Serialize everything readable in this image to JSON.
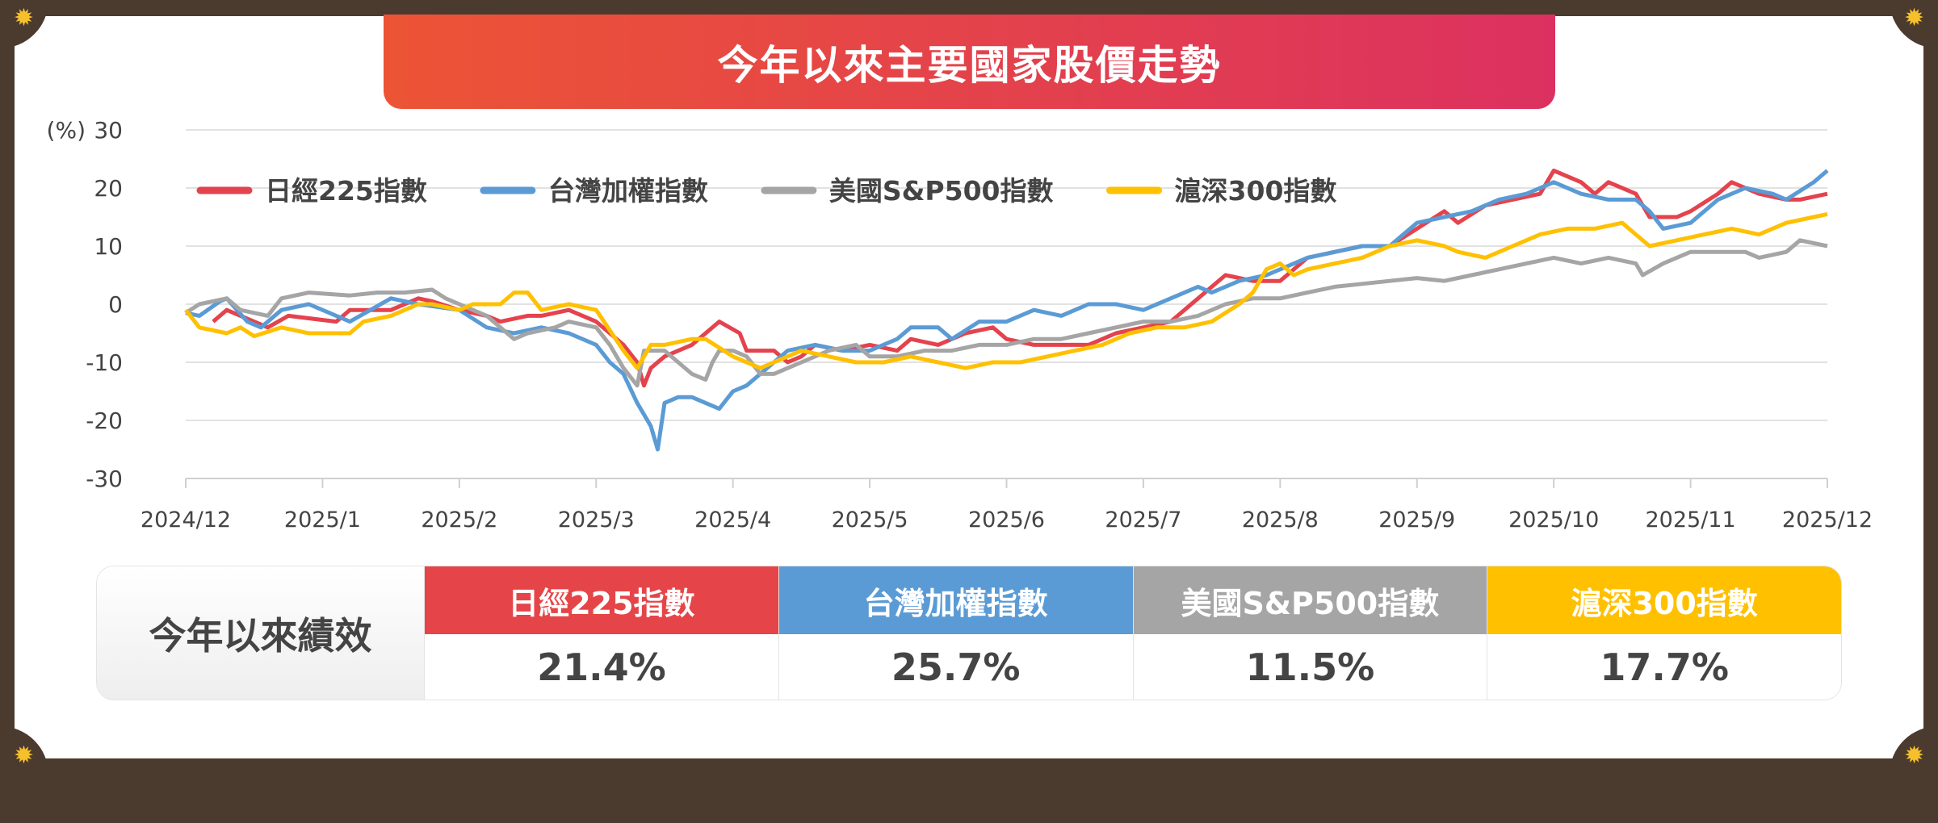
{
  "title": "今年以來主要國家股價走勢",
  "chart_data": {
    "type": "line",
    "title": "今年以來主要國家股價走勢",
    "ylabel": "(%)",
    "ylim": [
      -30,
      30
    ],
    "yticks": [
      "30",
      "20",
      "10",
      "0",
      "-10",
      "-20",
      "-30"
    ],
    "ytick_values": [
      30,
      20,
      10,
      0,
      -10,
      -20,
      -30
    ],
    "xlim": [
      0,
      12
    ],
    "xticks": [
      "2024/12",
      "2025/1",
      "2025/2",
      "2025/3",
      "2025/4",
      "2025/5",
      "2025/6",
      "2025/7",
      "2025/8",
      "2025/9",
      "2025/10",
      "2025/11",
      "2025/12"
    ],
    "grid": true,
    "legend_position": "top",
    "series": [
      {
        "name": "日經225指數",
        "color": "#e4434d",
        "points": [
          [
            0.2,
            -3
          ],
          [
            0.3,
            -1
          ],
          [
            0.5,
            -3
          ],
          [
            0.6,
            -4
          ],
          [
            0.75,
            -2
          ],
          [
            1.1,
            -3
          ],
          [
            1.2,
            -1
          ],
          [
            1.5,
            -1
          ],
          [
            1.7,
            1
          ],
          [
            1.8,
            0.5
          ],
          [
            2,
            -1
          ],
          [
            2.2,
            -2
          ],
          [
            2.3,
            -3
          ],
          [
            2.5,
            -2
          ],
          [
            2.6,
            -2
          ],
          [
            2.8,
            -1
          ],
          [
            3,
            -3
          ],
          [
            3.1,
            -5
          ],
          [
            3.2,
            -7
          ],
          [
            3.3,
            -10
          ],
          [
            3.35,
            -14
          ],
          [
            3.4,
            -11
          ],
          [
            3.5,
            -9
          ],
          [
            3.7,
            -7
          ],
          [
            3.8,
            -5
          ],
          [
            3.9,
            -3
          ],
          [
            4.05,
            -5
          ],
          [
            4.1,
            -8
          ],
          [
            4.3,
            -8
          ],
          [
            4.4,
            -10
          ],
          [
            4.5,
            -9
          ],
          [
            4.6,
            -7
          ],
          [
            4.8,
            -8
          ],
          [
            5,
            -7
          ],
          [
            5.2,
            -8
          ],
          [
            5.3,
            -6
          ],
          [
            5.5,
            -7
          ],
          [
            5.7,
            -5
          ],
          [
            5.9,
            -4
          ],
          [
            6,
            -6
          ],
          [
            6.2,
            -7
          ],
          [
            6.4,
            -7
          ],
          [
            6.6,
            -7
          ],
          [
            6.8,
            -5
          ],
          [
            7,
            -4
          ],
          [
            7.2,
            -3
          ],
          [
            7.4,
            1
          ],
          [
            7.6,
            5
          ],
          [
            7.8,
            4
          ],
          [
            8,
            4
          ],
          [
            8.2,
            8
          ],
          [
            8.4,
            9
          ],
          [
            8.6,
            10
          ],
          [
            8.8,
            10
          ],
          [
            9,
            13
          ],
          [
            9.2,
            16
          ],
          [
            9.3,
            14
          ],
          [
            9.5,
            17
          ],
          [
            9.7,
            18
          ],
          [
            9.9,
            19
          ],
          [
            10,
            23
          ],
          [
            10.2,
            21
          ],
          [
            10.3,
            19
          ],
          [
            10.4,
            21
          ],
          [
            10.6,
            19
          ],
          [
            10.7,
            15
          ],
          [
            10.9,
            15
          ],
          [
            11,
            16
          ],
          [
            11.2,
            19
          ],
          [
            11.3,
            21
          ],
          [
            11.5,
            19
          ],
          [
            11.7,
            18
          ],
          [
            11.8,
            18
          ],
          [
            12,
            19
          ]
        ]
      },
      {
        "name": "台灣加權指數",
        "color": "#5b9bd5",
        "points": [
          [
            0,
            -1.5
          ],
          [
            0.1,
            -2
          ],
          [
            0.25,
            0.5
          ],
          [
            0.3,
            1
          ],
          [
            0.45,
            -3
          ],
          [
            0.55,
            -4
          ],
          [
            0.7,
            -1
          ],
          [
            0.9,
            0
          ],
          [
            1.2,
            -3
          ],
          [
            1.5,
            1
          ],
          [
            1.7,
            0
          ],
          [
            2,
            -1
          ],
          [
            2.2,
            -4
          ],
          [
            2.4,
            -5
          ],
          [
            2.6,
            -4
          ],
          [
            2.8,
            -5
          ],
          [
            3,
            -7
          ],
          [
            3.1,
            -10
          ],
          [
            3.2,
            -12
          ],
          [
            3.3,
            -17
          ],
          [
            3.4,
            -21
          ],
          [
            3.45,
            -25
          ],
          [
            3.5,
            -17
          ],
          [
            3.6,
            -16
          ],
          [
            3.7,
            -16
          ],
          [
            3.8,
            -17
          ],
          [
            3.9,
            -18
          ],
          [
            4,
            -15
          ],
          [
            4.1,
            -14
          ],
          [
            4.2,
            -12
          ],
          [
            4.4,
            -8
          ],
          [
            4.6,
            -7
          ],
          [
            4.8,
            -8
          ],
          [
            5,
            -8
          ],
          [
            5.2,
            -6
          ],
          [
            5.3,
            -4
          ],
          [
            5.5,
            -4
          ],
          [
            5.6,
            -6
          ],
          [
            5.8,
            -3
          ],
          [
            6,
            -3
          ],
          [
            6.2,
            -1
          ],
          [
            6.4,
            -2
          ],
          [
            6.6,
            0
          ],
          [
            6.8,
            0
          ],
          [
            7,
            -1
          ],
          [
            7.2,
            1
          ],
          [
            7.4,
            3
          ],
          [
            7.5,
            2
          ],
          [
            7.7,
            4
          ],
          [
            7.9,
            5
          ],
          [
            8.2,
            8
          ],
          [
            8.4,
            9
          ],
          [
            8.6,
            10
          ],
          [
            8.8,
            10
          ],
          [
            9,
            14
          ],
          [
            9.2,
            15
          ],
          [
            9.4,
            16
          ],
          [
            9.6,
            18
          ],
          [
            9.8,
            19
          ],
          [
            10,
            21
          ],
          [
            10.2,
            19
          ],
          [
            10.4,
            18
          ],
          [
            10.6,
            18
          ],
          [
            10.7,
            16
          ],
          [
            10.8,
            13
          ],
          [
            11,
            14
          ],
          [
            11.2,
            18
          ],
          [
            11.4,
            20
          ],
          [
            11.6,
            19
          ],
          [
            11.7,
            18
          ],
          [
            11.9,
            21
          ],
          [
            12,
            23
          ]
        ]
      },
      {
        "name": "美國S&P500指數",
        "color": "#a5a5a5",
        "points": [
          [
            0,
            -1.5
          ],
          [
            0.1,
            0
          ],
          [
            0.3,
            1
          ],
          [
            0.4,
            -1
          ],
          [
            0.6,
            -2
          ],
          [
            0.7,
            1
          ],
          [
            0.9,
            2
          ],
          [
            1.2,
            1.5
          ],
          [
            1.4,
            2
          ],
          [
            1.6,
            2
          ],
          [
            1.8,
            2.5
          ],
          [
            1.9,
            1
          ],
          [
            2,
            0
          ],
          [
            2.2,
            -2
          ],
          [
            2.3,
            -4
          ],
          [
            2.4,
            -6
          ],
          [
            2.5,
            -5
          ],
          [
            2.7,
            -4
          ],
          [
            2.8,
            -3
          ],
          [
            3,
            -4
          ],
          [
            3.1,
            -7
          ],
          [
            3.2,
            -11
          ],
          [
            3.3,
            -14
          ],
          [
            3.35,
            -8
          ],
          [
            3.5,
            -8
          ],
          [
            3.6,
            -10
          ],
          [
            3.7,
            -12
          ],
          [
            3.8,
            -13
          ],
          [
            3.85,
            -10
          ],
          [
            3.9,
            -8
          ],
          [
            4,
            -8
          ],
          [
            4.1,
            -9
          ],
          [
            4.2,
            -12
          ],
          [
            4.3,
            -12
          ],
          [
            4.4,
            -11
          ],
          [
            4.5,
            -10
          ],
          [
            4.7,
            -8
          ],
          [
            4.9,
            -7
          ],
          [
            5,
            -9
          ],
          [
            5.2,
            -9
          ],
          [
            5.4,
            -8
          ],
          [
            5.6,
            -8
          ],
          [
            5.8,
            -7
          ],
          [
            6,
            -7
          ],
          [
            6.2,
            -6
          ],
          [
            6.4,
            -6
          ],
          [
            6.6,
            -5
          ],
          [
            6.8,
            -4
          ],
          [
            7,
            -3
          ],
          [
            7.2,
            -3
          ],
          [
            7.4,
            -2
          ],
          [
            7.6,
            0
          ],
          [
            7.8,
            1
          ],
          [
            8,
            1
          ],
          [
            8.2,
            2
          ],
          [
            8.4,
            3
          ],
          [
            8.6,
            3.5
          ],
          [
            8.8,
            4
          ],
          [
            9,
            4.5
          ],
          [
            9.2,
            4
          ],
          [
            9.4,
            5
          ],
          [
            9.6,
            6
          ],
          [
            9.8,
            7
          ],
          [
            10,
            8
          ],
          [
            10.2,
            7
          ],
          [
            10.4,
            8
          ],
          [
            10.6,
            7
          ],
          [
            10.65,
            5
          ],
          [
            10.8,
            7
          ],
          [
            11,
            9
          ],
          [
            11.2,
            9
          ],
          [
            11.4,
            9
          ],
          [
            11.5,
            8
          ],
          [
            11.7,
            9
          ],
          [
            11.8,
            11
          ],
          [
            12,
            10
          ]
        ]
      },
      {
        "name": "滬深300指數",
        "color": "#ffc000",
        "points": [
          [
            0,
            -1
          ],
          [
            0.1,
            -4
          ],
          [
            0.3,
            -5
          ],
          [
            0.4,
            -4
          ],
          [
            0.5,
            -5.5
          ],
          [
            0.7,
            -4
          ],
          [
            0.9,
            -5
          ],
          [
            1.2,
            -5
          ],
          [
            1.3,
            -3
          ],
          [
            1.5,
            -2
          ],
          [
            1.6,
            -1
          ],
          [
            1.7,
            0
          ],
          [
            1.8,
            0
          ],
          [
            2,
            -1
          ],
          [
            2.1,
            0
          ],
          [
            2.3,
            0
          ],
          [
            2.4,
            2
          ],
          [
            2.5,
            2
          ],
          [
            2.6,
            -1
          ],
          [
            2.8,
            0
          ],
          [
            3,
            -1
          ],
          [
            3.2,
            -8
          ],
          [
            3.3,
            -11
          ],
          [
            3.4,
            -7
          ],
          [
            3.5,
            -7
          ],
          [
            3.7,
            -6
          ],
          [
            3.8,
            -6
          ],
          [
            4,
            -9
          ],
          [
            4.2,
            -11
          ],
          [
            4.3,
            -10
          ],
          [
            4.5,
            -8
          ],
          [
            4.7,
            -9
          ],
          [
            4.9,
            -10
          ],
          [
            5.1,
            -10
          ],
          [
            5.3,
            -9
          ],
          [
            5.5,
            -10
          ],
          [
            5.7,
            -11
          ],
          [
            5.9,
            -10
          ],
          [
            6.1,
            -10
          ],
          [
            6.3,
            -9
          ],
          [
            6.5,
            -8
          ],
          [
            6.7,
            -7
          ],
          [
            6.9,
            -5
          ],
          [
            7.1,
            -4
          ],
          [
            7.3,
            -4
          ],
          [
            7.5,
            -3
          ],
          [
            7.7,
            0
          ],
          [
            7.8,
            2
          ],
          [
            7.9,
            6
          ],
          [
            8,
            7
          ],
          [
            8.1,
            5
          ],
          [
            8.2,
            6
          ],
          [
            8.4,
            7
          ],
          [
            8.6,
            8
          ],
          [
            8.8,
            10
          ],
          [
            9,
            11
          ],
          [
            9.2,
            10
          ],
          [
            9.3,
            9
          ],
          [
            9.5,
            8
          ],
          [
            9.7,
            10
          ],
          [
            9.9,
            12
          ],
          [
            10.1,
            13
          ],
          [
            10.3,
            13
          ],
          [
            10.5,
            14
          ],
          [
            10.6,
            12
          ],
          [
            10.7,
            10
          ],
          [
            10.9,
            11
          ],
          [
            11.1,
            12
          ],
          [
            11.3,
            13
          ],
          [
            11.5,
            12
          ],
          [
            11.7,
            14
          ],
          [
            11.9,
            15
          ],
          [
            12,
            15.5
          ]
        ]
      }
    ]
  },
  "table": {
    "label": "今年以來績效",
    "columns": [
      {
        "name": "日經225指數",
        "value": "21.4%",
        "color": "#e54548"
      },
      {
        "name": "台灣加權指數",
        "value": "25.7%",
        "color": "#5b9bd5"
      },
      {
        "name": "美國S&P500指數",
        "value": "11.5%",
        "color": "#a5a5a5"
      },
      {
        "name": "滬深300指數",
        "value": "17.7%",
        "color": "#ffc000"
      }
    ]
  }
}
